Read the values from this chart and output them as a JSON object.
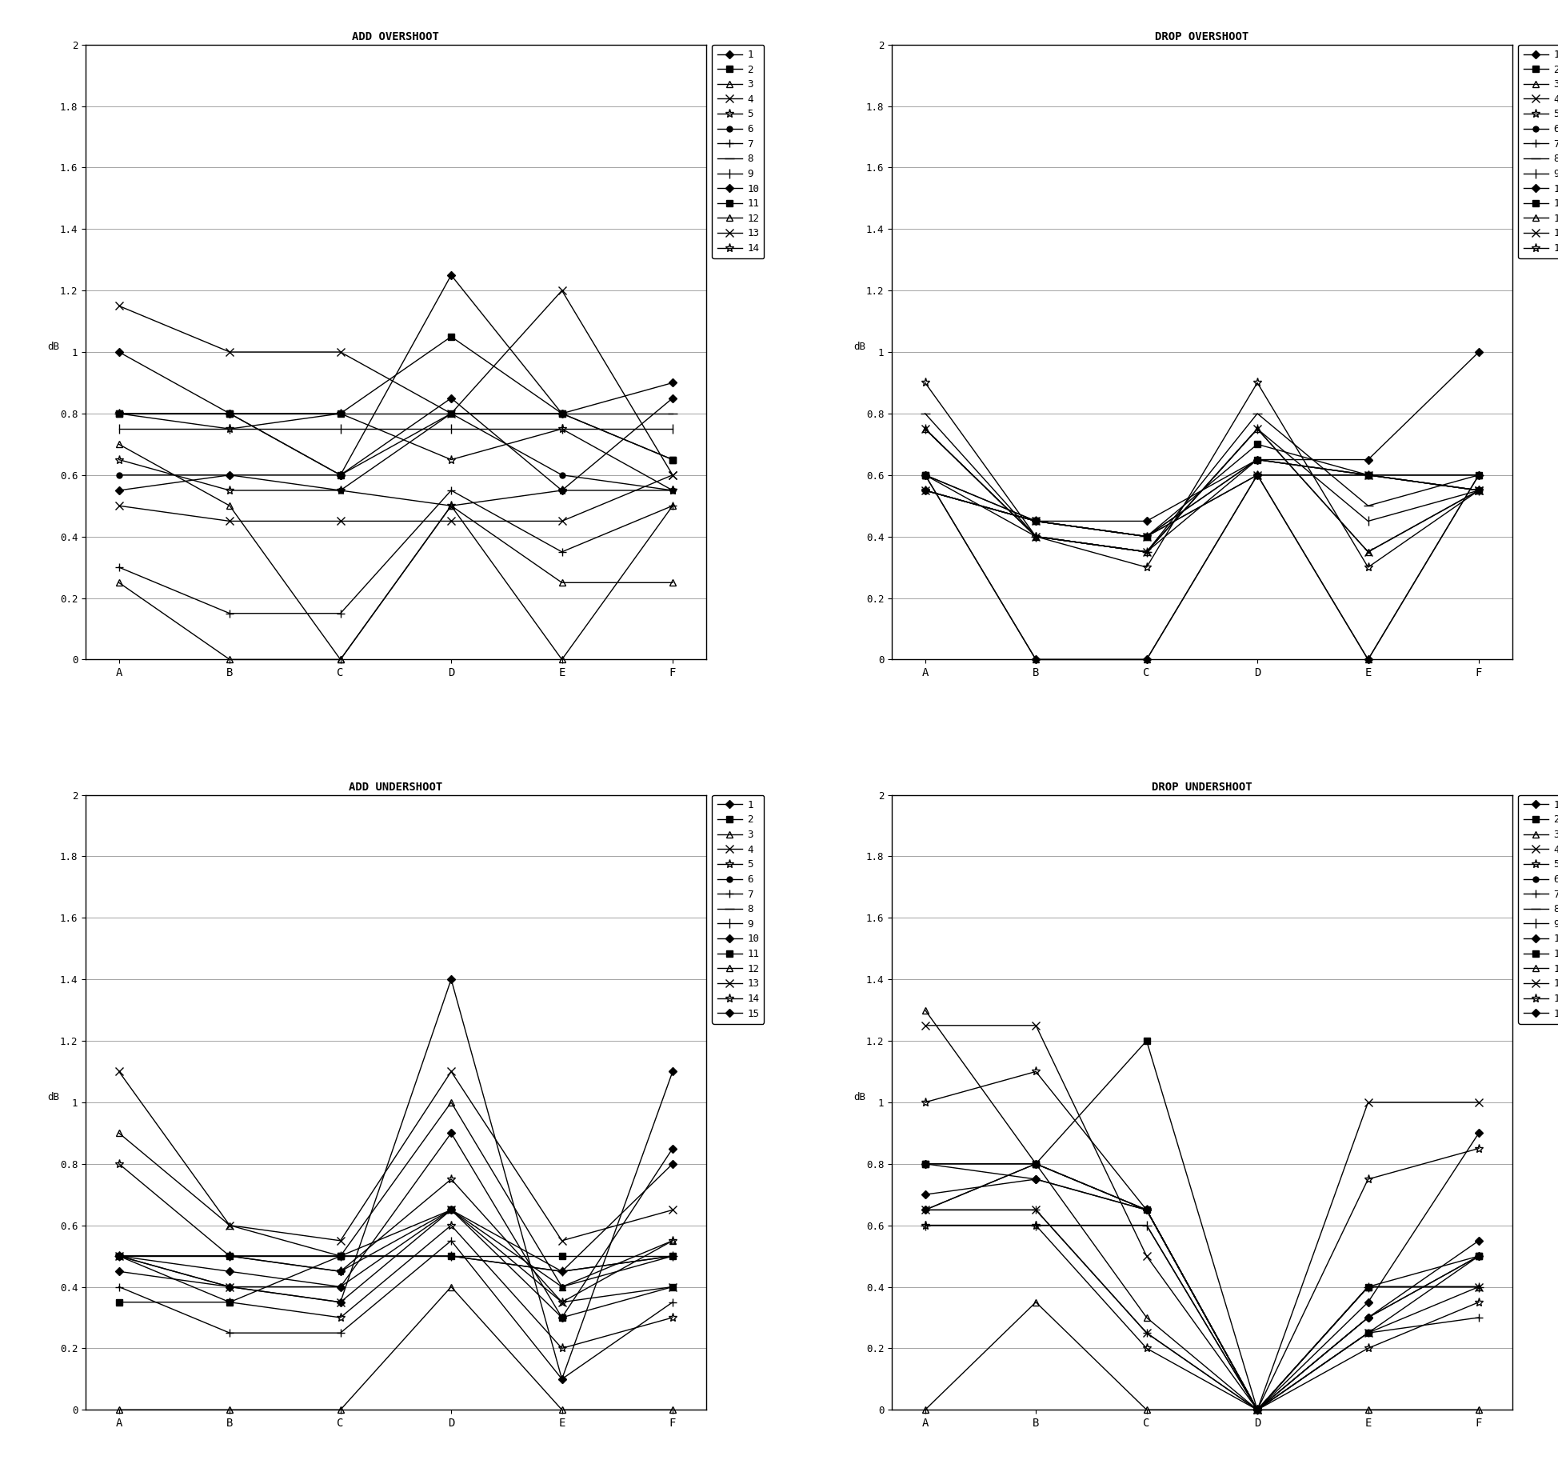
{
  "categories": [
    "A",
    "B",
    "C",
    "D",
    "E",
    "F"
  ],
  "titles": [
    "ADD OVERSHOOT",
    "DROP OVERSHOOT",
    "ADD UNDERSHOOT",
    "DROP UNDERSHOOT"
  ],
  "ylabel": "dB",
  "ylim": [
    0,
    2
  ],
  "yticks": [
    0,
    0.2,
    0.4,
    0.6,
    0.8,
    1.0,
    1.2,
    1.4,
    1.6,
    1.8,
    2.0
  ],
  "yticklabels": [
    "0",
    "0.2",
    "0.4",
    "0.6",
    "0.8",
    "1",
    "1.2",
    "1.4",
    "1.6",
    "1.8",
    "2"
  ],
  "add_overshoot": [
    [
      1.0,
      0.8,
      0.6,
      1.25,
      0.8,
      0.9
    ],
    [
      0.8,
      0.8,
      0.6,
      0.8,
      0.8,
      0.65
    ],
    [
      0.7,
      0.5,
      0.0,
      0.5,
      0.0,
      0.5
    ],
    [
      1.15,
      1.0,
      1.0,
      0.8,
      1.2,
      0.6
    ],
    [
      0.8,
      0.75,
      0.8,
      0.65,
      0.75,
      0.55
    ],
    [
      0.6,
      0.6,
      0.55,
      0.8,
      0.6,
      0.55
    ],
    [
      0.3,
      0.15,
      0.15,
      0.55,
      0.35,
      0.5
    ],
    [
      0.8,
      0.8,
      0.8,
      0.8,
      0.8,
      0.8
    ],
    [
      0.75,
      0.75,
      0.75,
      0.75,
      0.75,
      0.75
    ],
    [
      0.55,
      0.6,
      0.6,
      0.85,
      0.55,
      0.85
    ],
    [
      0.8,
      0.8,
      0.8,
      1.05,
      0.8,
      0.65
    ],
    [
      0.25,
      0.0,
      0.0,
      0.5,
      0.25,
      0.25
    ],
    [
      0.5,
      0.45,
      0.45,
      0.45,
      0.45,
      0.6
    ],
    [
      0.65,
      0.55,
      0.55,
      0.5,
      0.55,
      0.55
    ]
  ],
  "drop_overshoot": [
    [
      0.55,
      0.45,
      0.45,
      0.65,
      0.65,
      1.0
    ],
    [
      0.6,
      0.45,
      0.4,
      0.7,
      0.6,
      0.6
    ],
    [
      0.75,
      0.4,
      0.35,
      0.75,
      0.35,
      0.55
    ],
    [
      0.75,
      0.4,
      0.35,
      0.75,
      0.35,
      0.55
    ],
    [
      0.9,
      0.4,
      0.3,
      0.9,
      0.3,
      0.55
    ],
    [
      0.55,
      0.45,
      0.4,
      0.65,
      0.6,
      0.6
    ],
    [
      0.6,
      0.4,
      0.35,
      0.65,
      0.6,
      0.55
    ],
    [
      0.8,
      0.4,
      0.35,
      0.8,
      0.5,
      0.6
    ],
    [
      0.75,
      0.4,
      0.35,
      0.75,
      0.45,
      0.55
    ],
    [
      0.6,
      0.0,
      0.0,
      0.6,
      0.0,
      0.6
    ],
    [
      0.6,
      0.45,
      0.4,
      0.65,
      0.6,
      0.55
    ],
    [
      0.6,
      0.0,
      0.0,
      0.6,
      0.0,
      0.6
    ],
    [
      0.55,
      0.45,
      0.4,
      0.6,
      0.6,
      0.55
    ],
    [
      0.55,
      0.45,
      0.4,
      0.6,
      0.6,
      0.55
    ]
  ],
  "add_undershoot": [
    [
      0.45,
      0.4,
      0.35,
      1.4,
      0.1,
      1.1
    ],
    [
      0.35,
      0.35,
      0.5,
      0.65,
      0.3,
      0.4
    ],
    [
      0.9,
      0.6,
      0.5,
      1.0,
      0.4,
      0.55
    ],
    [
      1.1,
      0.6,
      0.55,
      1.1,
      0.55,
      0.65
    ],
    [
      0.8,
      0.5,
      0.45,
      0.75,
      0.35,
      0.55
    ],
    [
      0.5,
      0.4,
      0.4,
      0.65,
      0.4,
      0.5
    ],
    [
      0.4,
      0.25,
      0.25,
      0.55,
      0.1,
      0.35
    ],
    [
      0.5,
      0.5,
      0.5,
      0.5,
      0.45,
      0.5
    ],
    [
      0.5,
      0.5,
      0.5,
      0.5,
      0.45,
      0.5
    ],
    [
      0.5,
      0.45,
      0.4,
      0.9,
      0.3,
      0.85
    ],
    [
      0.5,
      0.5,
      0.5,
      0.5,
      0.5,
      0.5
    ],
    [
      0.0,
      0.0,
      0.0,
      0.4,
      0.0,
      0.0
    ],
    [
      0.5,
      0.4,
      0.35,
      0.65,
      0.35,
      0.4
    ],
    [
      0.5,
      0.35,
      0.3,
      0.6,
      0.2,
      0.3
    ],
    [
      0.5,
      0.5,
      0.45,
      0.65,
      0.45,
      0.8
    ]
  ],
  "drop_undershoot": [
    [
      0.65,
      0.8,
      0.65,
      0.0,
      0.3,
      0.5
    ],
    [
      0.8,
      0.8,
      0.65,
      0.0,
      0.25,
      0.5
    ],
    [
      1.3,
      0.8,
      0.3,
      0.0,
      0.4,
      0.4
    ],
    [
      1.25,
      1.25,
      0.5,
      0.0,
      1.0,
      1.0
    ],
    [
      1.0,
      1.1,
      0.65,
      0.0,
      0.75,
      0.85
    ],
    [
      0.65,
      0.8,
      0.65,
      0.0,
      0.3,
      0.5
    ],
    [
      0.65,
      0.65,
      0.25,
      0.0,
      0.25,
      0.3
    ],
    [
      0.6,
      0.6,
      0.6,
      0.0,
      0.4,
      0.4
    ],
    [
      0.6,
      0.6,
      0.6,
      0.0,
      0.4,
      0.4
    ],
    [
      0.8,
      0.75,
      0.65,
      0.0,
      0.35,
      0.9
    ],
    [
      0.8,
      0.8,
      1.2,
      0.0,
      0.4,
      0.5
    ],
    [
      0.0,
      0.35,
      0.0,
      0.0,
      0.0,
      0.0
    ],
    [
      0.65,
      0.65,
      0.25,
      0.0,
      0.25,
      0.4
    ],
    [
      0.6,
      0.6,
      0.2,
      0.0,
      0.2,
      0.35
    ],
    [
      0.7,
      0.75,
      0.65,
      0.0,
      0.3,
      0.55
    ]
  ],
  "legend_14": [
    "1",
    "2",
    "3",
    "4",
    "5",
    "6",
    "7",
    "8",
    "9",
    "10",
    "11",
    "12",
    "13",
    "14"
  ],
  "legend_15": [
    "1",
    "2",
    "3",
    "4",
    "5",
    "6",
    "7",
    "8",
    "9",
    "10",
    "11",
    "12",
    "13",
    "14",
    "15"
  ]
}
